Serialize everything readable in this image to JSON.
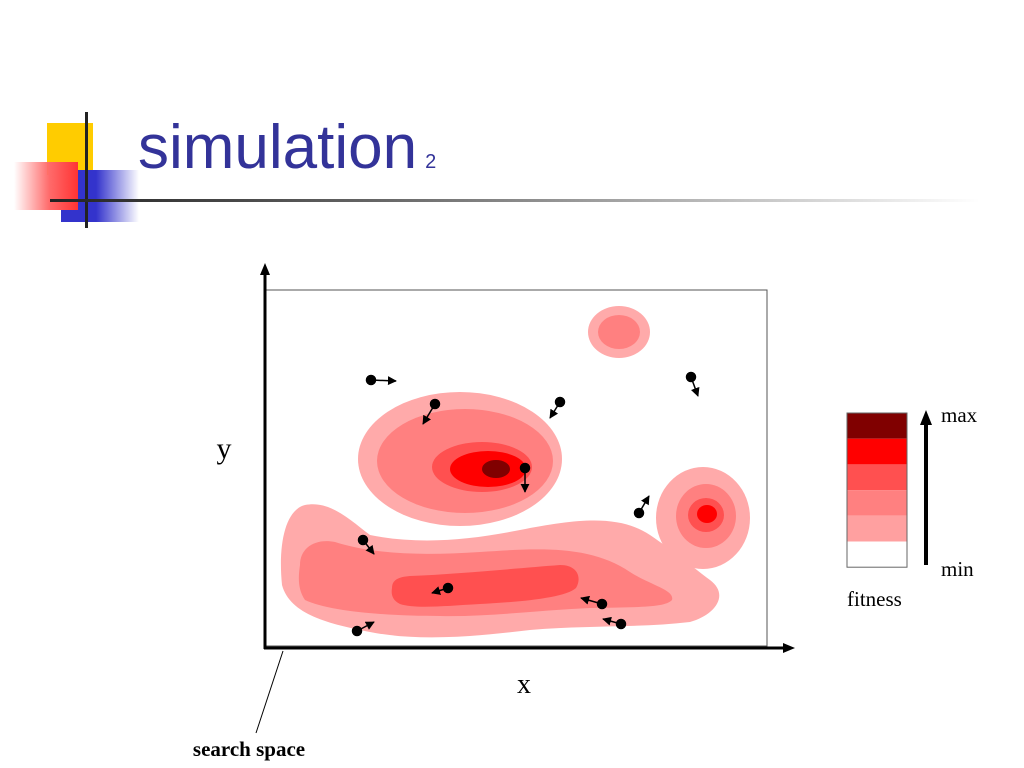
{
  "slide": {
    "title": "simulation",
    "title_number": "2"
  },
  "diagram": {
    "x_label": "x",
    "y_label": "y",
    "callout_label": "search space"
  },
  "legend": {
    "max_label": "max",
    "min_label": "min",
    "caption": "fitness",
    "swatches": [
      "#800000",
      "#ff0000",
      "#ff5050",
      "#ff8080",
      "#ffa0a0",
      "#ffffff"
    ]
  },
  "colors": {
    "title": "#333399",
    "accent_yellow": "#ffcc00",
    "accent_blue": "#3333cc",
    "accent_red": "#ff3333"
  }
}
